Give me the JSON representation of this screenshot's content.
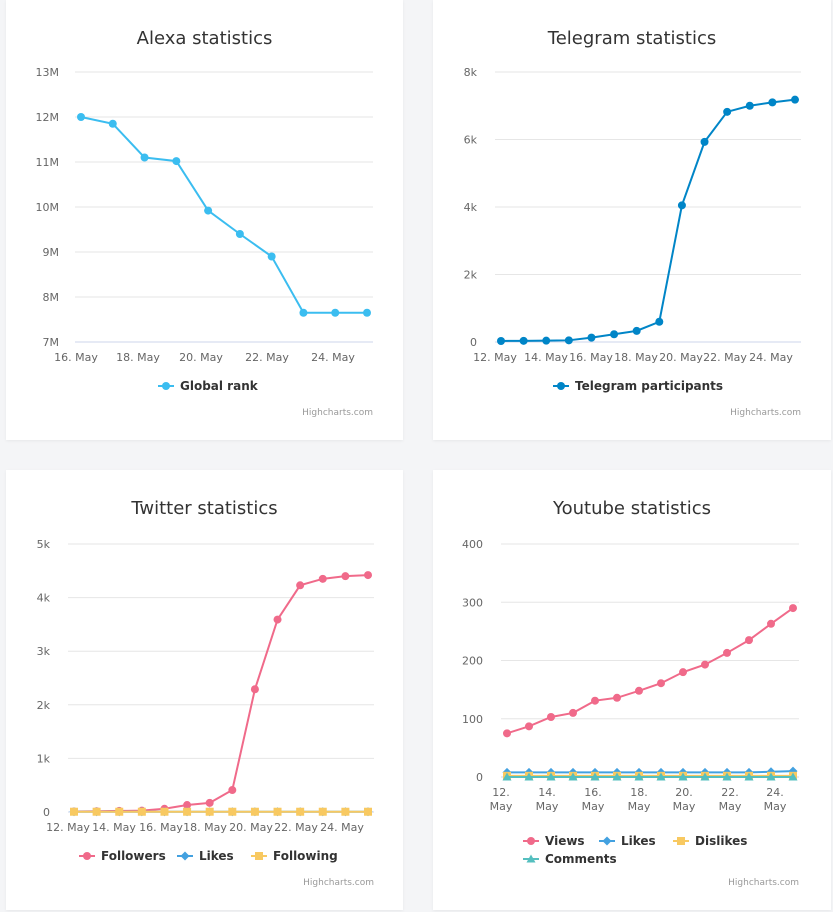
{
  "credits": "Highcharts.com",
  "chart_data": [
    {
      "type": "line",
      "title": "Alexa statistics",
      "x_labels": [
        "16. May",
        "18. May",
        "20. May",
        "22. May",
        "24. May"
      ],
      "y_ticks": [
        "7M",
        "8M",
        "9M",
        "10M",
        "11M",
        "12M",
        "13M"
      ],
      "ylim": [
        7000000,
        13000000
      ],
      "series": [
        {
          "name": "Global rank",
          "color": "#3bbdf0",
          "marker": "circle",
          "values": [
            12000000,
            11850000,
            11100000,
            11020000,
            9920000,
            9400000,
            8900000,
            7650000,
            7650000,
            7650000
          ]
        }
      ]
    },
    {
      "type": "line",
      "title": "Telegram statistics",
      "x_labels": [
        "12. May",
        "14. May",
        "16. May",
        "18. May",
        "20. May",
        "22. May",
        "24. May"
      ],
      "y_ticks": [
        "0",
        "2k",
        "4k",
        "6k",
        "8k"
      ],
      "ylim": [
        0,
        8000
      ],
      "series": [
        {
          "name": "Telegram participants",
          "color": "#0085c7",
          "marker": "circle",
          "values": [
            30,
            35,
            40,
            50,
            130,
            230,
            330,
            600,
            4050,
            5930,
            6820,
            7000,
            7100,
            7180
          ]
        }
      ]
    },
    {
      "type": "line",
      "title": "Twitter statistics",
      "x_labels": [
        "12. May",
        "14. May",
        "16. May",
        "18. May",
        "20. May",
        "22. May",
        "24. May"
      ],
      "y_ticks": [
        "0",
        "1k",
        "2k",
        "3k",
        "4k",
        "5k"
      ],
      "ylim": [
        0,
        5000
      ],
      "series": [
        {
          "name": "Followers",
          "color": "#f06a8a",
          "marker": "circle",
          "values": [
            10,
            15,
            20,
            25,
            60,
            130,
            170,
            410,
            2290,
            3590,
            4230,
            4350,
            4400,
            4420
          ]
        },
        {
          "name": "Likes",
          "color": "#43a1e0",
          "marker": "diamond",
          "values": [
            5,
            5,
            5,
            5,
            5,
            5,
            5,
            5,
            5,
            5,
            5,
            5,
            5,
            5
          ]
        },
        {
          "name": "Following",
          "color": "#f8c961",
          "marker": "square",
          "values": [
            5,
            5,
            5,
            5,
            5,
            5,
            5,
            5,
            5,
            5,
            5,
            5,
            5,
            5
          ]
        }
      ]
    },
    {
      "type": "line",
      "title": "Youtube statistics",
      "x_labels": [
        [
          "12.",
          "May"
        ],
        [
          "14.",
          "May"
        ],
        [
          "16.",
          "May"
        ],
        [
          "18.",
          "May"
        ],
        [
          "20.",
          "May"
        ],
        [
          "22.",
          "May"
        ],
        [
          "24.",
          "May"
        ]
      ],
      "y_ticks": [
        "0",
        "100",
        "200",
        "300",
        "400"
      ],
      "ylim": [
        0,
        400
      ],
      "series": [
        {
          "name": "Views",
          "color": "#f06a8a",
          "marker": "circle",
          "values": [
            75,
            87,
            103,
            110,
            131,
            136,
            148,
            161,
            180,
            193,
            213,
            235,
            263,
            290
          ]
        },
        {
          "name": "Likes",
          "color": "#43a1e0",
          "marker": "diamond",
          "values": [
            8,
            8,
            8,
            8,
            8,
            8,
            8,
            8,
            8,
            8,
            8,
            8,
            9,
            10
          ]
        },
        {
          "name": "Dislikes",
          "color": "#f8c961",
          "marker": "square",
          "values": [
            2,
            2,
            2,
            2,
            2,
            2,
            2,
            2,
            2,
            2,
            2,
            2,
            2,
            2
          ]
        },
        {
          "name": "Comments",
          "color": "#55bfbf",
          "marker": "triangle",
          "values": [
            0,
            0,
            0,
            0,
            0,
            0,
            0,
            0,
            0,
            0,
            0,
            0,
            0,
            0
          ]
        }
      ]
    }
  ]
}
